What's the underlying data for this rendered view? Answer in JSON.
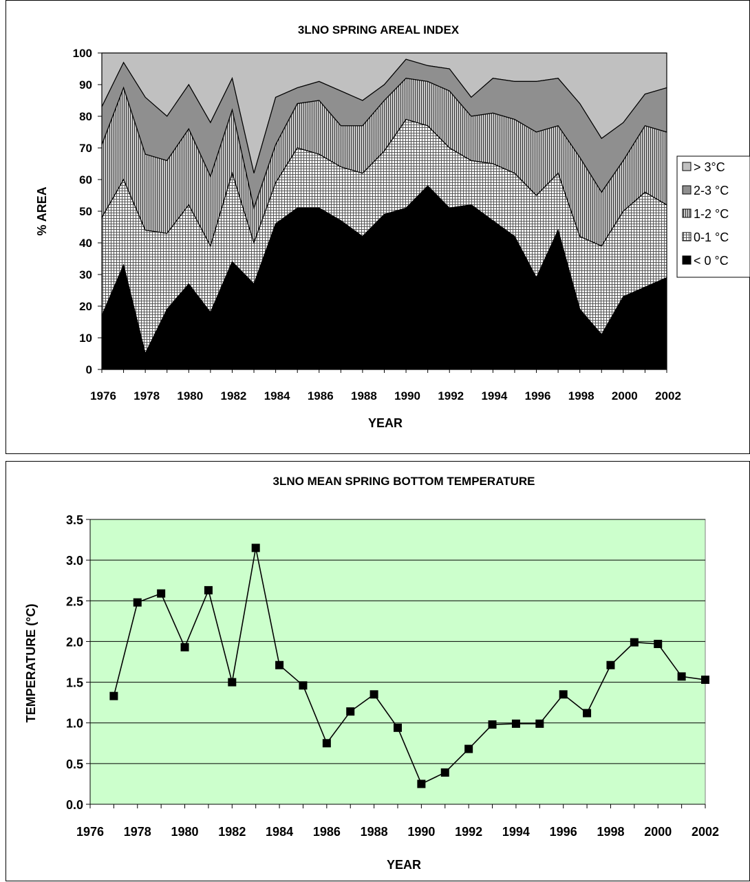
{
  "chart_data": [
    {
      "type": "area",
      "stacked": true,
      "title": "3LNO SPRING AREAL INDEX",
      "xlabel": "YEAR",
      "ylabel": "% AREA",
      "ylim": [
        0,
        100
      ],
      "yticks": [
        "0",
        "10",
        "20",
        "30",
        "40",
        "50",
        "60",
        "70",
        "80",
        "90",
        "100"
      ],
      "xticks": [
        "1976",
        "1978",
        "1980",
        "1982",
        "1984",
        "1986",
        "1988",
        "1990",
        "1992",
        "1994",
        "1996",
        "1998",
        "2000",
        "2002"
      ],
      "x": [
        1976,
        1977,
        1978,
        1979,
        1980,
        1981,
        1982,
        1983,
        1984,
        1985,
        1986,
        1987,
        1988,
        1989,
        1990,
        1991,
        1992,
        1993,
        1994,
        1995,
        1996,
        1997,
        1998,
        1999,
        2000,
        2001,
        2002
      ],
      "legend_position": "right",
      "grid": false,
      "series": [
        {
          "name": "< 0 °C",
          "fill": "#000000",
          "values": [
            17,
            33,
            5,
            19,
            27,
            18,
            34,
            27,
            46,
            51,
            51,
            47,
            42,
            49,
            51,
            58,
            51,
            52,
            47,
            42,
            29,
            44,
            19,
            11,
            23,
            26,
            29
          ]
        },
        {
          "name": "0-1 °C",
          "fill": "#d8d8d8",
          "pattern": "grid",
          "values": [
            48,
            60,
            44,
            43,
            52,
            39,
            62,
            40,
            59,
            70,
            68,
            64,
            62,
            69,
            79,
            77,
            70,
            66,
            65,
            62,
            55,
            62,
            42,
            39,
            50,
            56,
            52
          ]
        },
        {
          "name": "1-2 °C",
          "fill": "#a0a0a0",
          "pattern": "vlines",
          "values": [
            71,
            89,
            68,
            66,
            76,
            61,
            82,
            51,
            71,
            84,
            85,
            77,
            77,
            85,
            92,
            91,
            88,
            80,
            81,
            79,
            75,
            77,
            67,
            56,
            66,
            77,
            75
          ]
        },
        {
          "name": "2-3 °C",
          "fill": "#8f8f8f",
          "values": [
            83,
            97,
            86,
            80,
            90,
            78,
            92,
            62,
            86,
            89,
            91,
            88,
            85,
            90,
            98,
            96,
            95,
            86,
            92,
            91,
            91,
            92,
            84,
            73,
            78,
            87,
            89
          ]
        },
        {
          "name": "> 3°C",
          "fill": "#c0c0c0",
          "values": [
            100,
            100,
            100,
            100,
            100,
            100,
            100,
            100,
            100,
            100,
            100,
            100,
            100,
            100,
            100,
            100,
            100,
            100,
            100,
            100,
            100,
            100,
            100,
            100,
            100,
            100,
            100
          ]
        }
      ]
    },
    {
      "type": "line",
      "title": "3LNO MEAN SPRING BOTTOM TEMPERATURE",
      "xlabel": "YEAR",
      "ylabel": "TEMPERATURE (°C)",
      "ylim": [
        0,
        3.5
      ],
      "xlim": [
        1976,
        2002
      ],
      "yticks": [
        "0.0",
        "0.5",
        "1.0",
        "1.5",
        "2.0",
        "2.5",
        "3.0",
        "3.5"
      ],
      "xticks": [
        "1976",
        "1978",
        "1980",
        "1982",
        "1984",
        "1986",
        "1988",
        "1990",
        "1992",
        "1994",
        "1996",
        "1998",
        "2000",
        "2002"
      ],
      "grid": true,
      "plot_background": "#ccffcc",
      "marker": "square",
      "series": [
        {
          "x": [
            1977,
            1978,
            1979,
            1980,
            1981,
            1982,
            1983,
            1984,
            1985,
            1986,
            1987,
            1988,
            1989,
            1990,
            1991,
            1992,
            1993,
            1994,
            1995,
            1996,
            1997,
            1998,
            1999,
            2000,
            2001,
            2002
          ],
          "values": [
            1.33,
            2.48,
            2.59,
            1.93,
            2.63,
            1.5,
            3.15,
            1.71,
            1.46,
            0.75,
            1.14,
            1.35,
            0.94,
            0.25,
            0.39,
            0.68,
            0.98,
            0.99,
            0.99,
            1.35,
            1.12,
            1.71,
            1.99,
            1.97,
            1.57,
            1.53
          ]
        }
      ]
    }
  ]
}
